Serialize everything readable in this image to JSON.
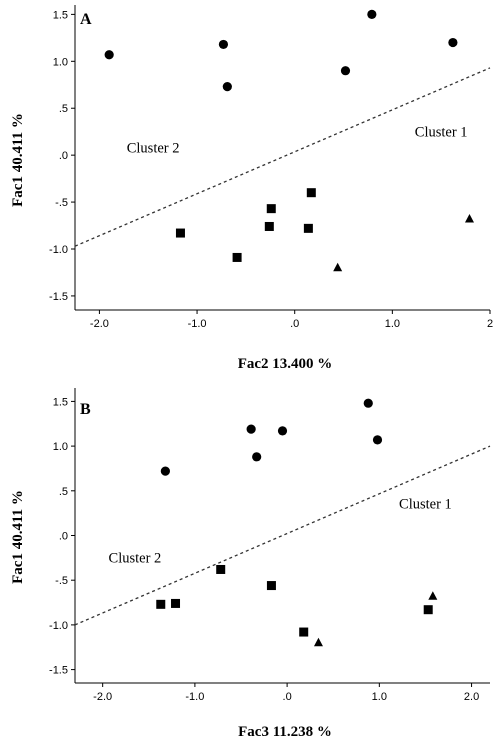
{
  "chart_data": [
    {
      "type": "scatter",
      "panel_label": "A",
      "xlabel": "Fac2   13.400 %",
      "ylabel": "Fac1   40.411 %",
      "xlim": [
        -2.25,
        2.0
      ],
      "ylim": [
        -1.65,
        1.6
      ],
      "x_ticks": [
        -2.0,
        -1.0,
        0.0,
        1.0,
        2.0
      ],
      "x_tick_labels": [
        "-2.0",
        "-1.0",
        ".0",
        "1.0",
        "2"
      ],
      "y_ticks": [
        1.5,
        1.0,
        0.5,
        0.0,
        -0.5,
        -1.0,
        -1.5
      ],
      "y_tick_labels": [
        "1.5",
        "1.0",
        ".5",
        ".0",
        "-.5",
        "-1.0",
        "-1.5"
      ],
      "grid": false,
      "cluster_labels": [
        {
          "text": "Cluster 2",
          "x": -1.45,
          "y": 0.03
        },
        {
          "text": "Cluster 1",
          "x": 1.5,
          "y": 0.2
        }
      ],
      "divider": {
        "style": "dashed",
        "points": [
          [
            -2.25,
            -0.97
          ],
          [
            2.0,
            0.93
          ]
        ]
      },
      "series": [
        {
          "marker": "circle",
          "points": [
            [
              -1.9,
              1.07
            ],
            [
              -0.73,
              1.18
            ],
            [
              -0.69,
              0.73
            ],
            [
              0.52,
              0.9
            ],
            [
              0.79,
              1.5
            ],
            [
              1.62,
              1.2
            ]
          ]
        },
        {
          "marker": "square",
          "points": [
            [
              -1.17,
              -0.83
            ],
            [
              -0.59,
              -1.09
            ],
            [
              -0.24,
              -0.57
            ],
            [
              -0.26,
              -0.76
            ],
            [
              0.14,
              -0.78
            ],
            [
              0.17,
              -0.4
            ]
          ]
        },
        {
          "marker": "triangle",
          "points": [
            [
              0.44,
              -1.2
            ],
            [
              1.79,
              -0.68
            ]
          ]
        }
      ]
    },
    {
      "type": "scatter",
      "panel_label": "B",
      "xlabel": "Fac3   11.238 %",
      "ylabel": "Fac1   40.411 %",
      "xlim": [
        -2.3,
        2.2
      ],
      "ylim": [
        -1.65,
        1.65
      ],
      "x_ticks": [
        -2.0,
        -1.0,
        0.0,
        1.0,
        2.0
      ],
      "x_tick_labels": [
        "-2.0",
        "-1.0",
        ".0",
        "1.0",
        "2.0"
      ],
      "y_ticks": [
        1.5,
        1.0,
        0.5,
        0.0,
        -0.5,
        -1.0,
        -1.5
      ],
      "y_tick_labels": [
        "1.5",
        "1.0",
        ".5",
        ".0",
        "-.5",
        "-1.0",
        "-1.5"
      ],
      "grid": false,
      "cluster_labels": [
        {
          "text": "Cluster 2",
          "x": -1.65,
          "y": -0.3
        },
        {
          "text": "Cluster 1",
          "x": 1.5,
          "y": 0.3
        }
      ],
      "divider": {
        "style": "dashed",
        "points": [
          [
            -2.3,
            -1.0
          ],
          [
            2.2,
            1.0
          ]
        ]
      },
      "series": [
        {
          "marker": "circle",
          "points": [
            [
              -1.32,
              0.72
            ],
            [
              -0.39,
              1.19
            ],
            [
              -0.33,
              0.88
            ],
            [
              -0.05,
              1.17
            ],
            [
              0.88,
              1.48
            ],
            [
              0.98,
              1.07
            ]
          ]
        },
        {
          "marker": "square",
          "points": [
            [
              -1.37,
              -0.77
            ],
            [
              -1.21,
              -0.76
            ],
            [
              -0.72,
              -0.38
            ],
            [
              -0.17,
              -0.56
            ],
            [
              0.18,
              -1.08
            ],
            [
              1.53,
              -0.83
            ]
          ]
        },
        {
          "marker": "triangle",
          "points": [
            [
              0.34,
              -1.2
            ],
            [
              1.58,
              -0.68
            ]
          ]
        }
      ]
    }
  ]
}
